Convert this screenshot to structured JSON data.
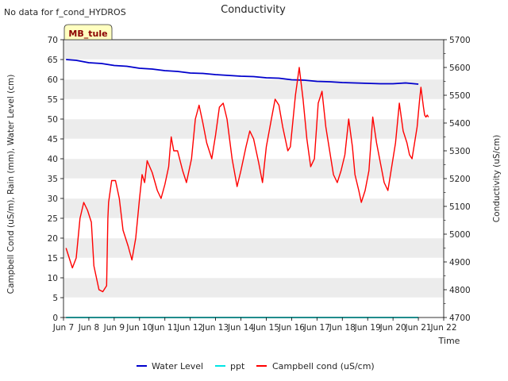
{
  "chart_data": {
    "type": "line",
    "title": "Conductivity",
    "note": "No data for f_cond_HYDROS",
    "badge": "MB_tule",
    "xlabel": "Time",
    "ylabel_left": "Campbell Cond (uS/m), Rain (mm), Water Level (cm)",
    "ylabel_right": "Conductivity (uS/cm)",
    "xlim": [
      7.0,
      22.0
    ],
    "ylim_left": [
      0,
      70
    ],
    "ylim_right": [
      4700,
      5700
    ],
    "x_ticks": [
      7,
      8,
      9,
      10,
      11,
      12,
      13,
      14,
      15,
      16,
      17,
      18,
      19,
      20,
      21,
      22
    ],
    "x_tick_labels": [
      "Jun 7",
      "Jun 8",
      "Jun 9",
      "Jun 10",
      "Jun 11",
      "Jun 12",
      "Jun 13",
      "Jun 14",
      "Jun 15",
      "Jun 16",
      "Jun 17",
      "Jun 18",
      "Jun 19",
      "Jun 20",
      "Jun 21",
      "Jun 22"
    ],
    "y_ticks_left": [
      0,
      5,
      10,
      15,
      20,
      25,
      30,
      35,
      40,
      45,
      50,
      55,
      60,
      65,
      70
    ],
    "y_ticks_right": [
      4700,
      4800,
      4900,
      5000,
      5100,
      5200,
      5300,
      5400,
      5500,
      5600,
      5700
    ],
    "legend": [
      "Water Level",
      "ppt",
      "Campbell cond (uS/cm)"
    ],
    "grid": "horizontal bands",
    "series": [
      {
        "name": "Water Level",
        "color": "#0000cc",
        "axis": "left",
        "x": [
          7.1,
          7.5,
          8.0,
          8.5,
          9.0,
          9.5,
          10.0,
          10.5,
          11.0,
          11.5,
          12.0,
          12.5,
          13.0,
          13.5,
          14.0,
          14.5,
          15.0,
          15.5,
          16.0,
          16.5,
          17.0,
          17.5,
          18.0,
          18.5,
          19.0,
          19.5,
          20.0,
          20.5,
          21.0
        ],
        "values": [
          65.0,
          64.8,
          64.2,
          64.0,
          63.5,
          63.3,
          62.8,
          62.6,
          62.2,
          62.0,
          61.6,
          61.5,
          61.2,
          61.0,
          60.8,
          60.7,
          60.4,
          60.3,
          59.9,
          59.8,
          59.5,
          59.4,
          59.2,
          59.1,
          59.0,
          58.9,
          58.9,
          59.1,
          58.8
        ]
      },
      {
        "name": "ppt",
        "color": "#00e5e5",
        "axis": "left",
        "x": [
          7.1,
          21.0
        ],
        "values": [
          0,
          0
        ]
      },
      {
        "name": "Campbell cond (uS/cm)",
        "color": "#ff0000",
        "axis": "left",
        "x": [
          7.1,
          7.25,
          7.35,
          7.5,
          7.65,
          7.8,
          7.95,
          8.1,
          8.2,
          8.3,
          8.4,
          8.55,
          8.7,
          8.75,
          8.78,
          8.9,
          9.05,
          9.2,
          9.35,
          9.55,
          9.7,
          9.85,
          10.0,
          10.1,
          10.2,
          10.3,
          10.5,
          10.7,
          10.85,
          11.0,
          11.15,
          11.2,
          11.25,
          11.35,
          11.5,
          11.7,
          11.85,
          12.05,
          12.2,
          12.35,
          12.5,
          12.65,
          12.85,
          13.0,
          13.15,
          13.3,
          13.45,
          13.65,
          13.85,
          14.0,
          14.2,
          14.35,
          14.5,
          14.7,
          14.85,
          15.0,
          15.2,
          15.35,
          15.5,
          15.65,
          15.75,
          15.85,
          15.95,
          16.15,
          16.3,
          16.45,
          16.6,
          16.75,
          16.9,
          17.05,
          17.2,
          17.35,
          17.5,
          17.65,
          17.8,
          17.95,
          18.1,
          18.25,
          18.4,
          18.5,
          18.65,
          18.75,
          18.9,
          19.05,
          19.2,
          19.35,
          19.5,
          19.65,
          19.8,
          19.95,
          20.1,
          20.25,
          20.4,
          20.55,
          20.65,
          20.75,
          20.85,
          20.95
        ],
        "values": [
          17.5,
          14.5,
          12.5,
          15.0,
          25.0,
          29.0,
          27.0,
          24.0,
          13.0,
          10.0,
          7.0,
          6.5,
          8.0,
          25.0,
          29.0,
          34.5,
          34.5,
          30.0,
          22.0,
          18.0,
          14.5,
          20.0,
          30.0,
          36.0,
          34.0,
          39.5,
          36.5,
          32.0,
          30.0,
          33.5,
          38.0,
          42.0,
          45.5,
          42.0,
          42.0,
          37.0,
          34.0,
          40.0,
          50.0,
          53.5,
          49.0,
          44.0,
          40.0,
          46.0,
          53.0,
          54.0,
          50.0,
          40.0,
          33.0,
          37.0,
          43.0,
          47.0,
          45.0,
          39.0,
          34.0,
          43.0,
          50.0,
          55.0,
          53.5,
          48.0,
          45.0,
          42.0,
          43.0,
          56.0,
          63.0,
          55.0,
          45.0,
          38.0,
          40.0,
          54.0,
          57.0,
          48.0,
          42.0,
          36.0,
          34.0,
          37.0,
          41.0,
          50.0,
          43.0,
          36.0,
          32.0,
          29.0,
          32.0,
          37.0,
          50.5,
          44.0,
          39.0,
          34.0,
          32.0,
          38.0,
          44.0,
          54.0,
          47.0,
          44.0,
          41.0,
          40.0,
          44.0,
          48.0
        ]
      }
    ],
    "extra_red_tail": {
      "x": [
        20.95,
        21.05,
        21.1,
        21.2,
        21.25,
        21.3,
        21.35,
        21.4
      ],
      "values": [
        48.0,
        55.0,
        58.0,
        53.0,
        51.0,
        50.5,
        51.0,
        50.5
      ]
    }
  }
}
